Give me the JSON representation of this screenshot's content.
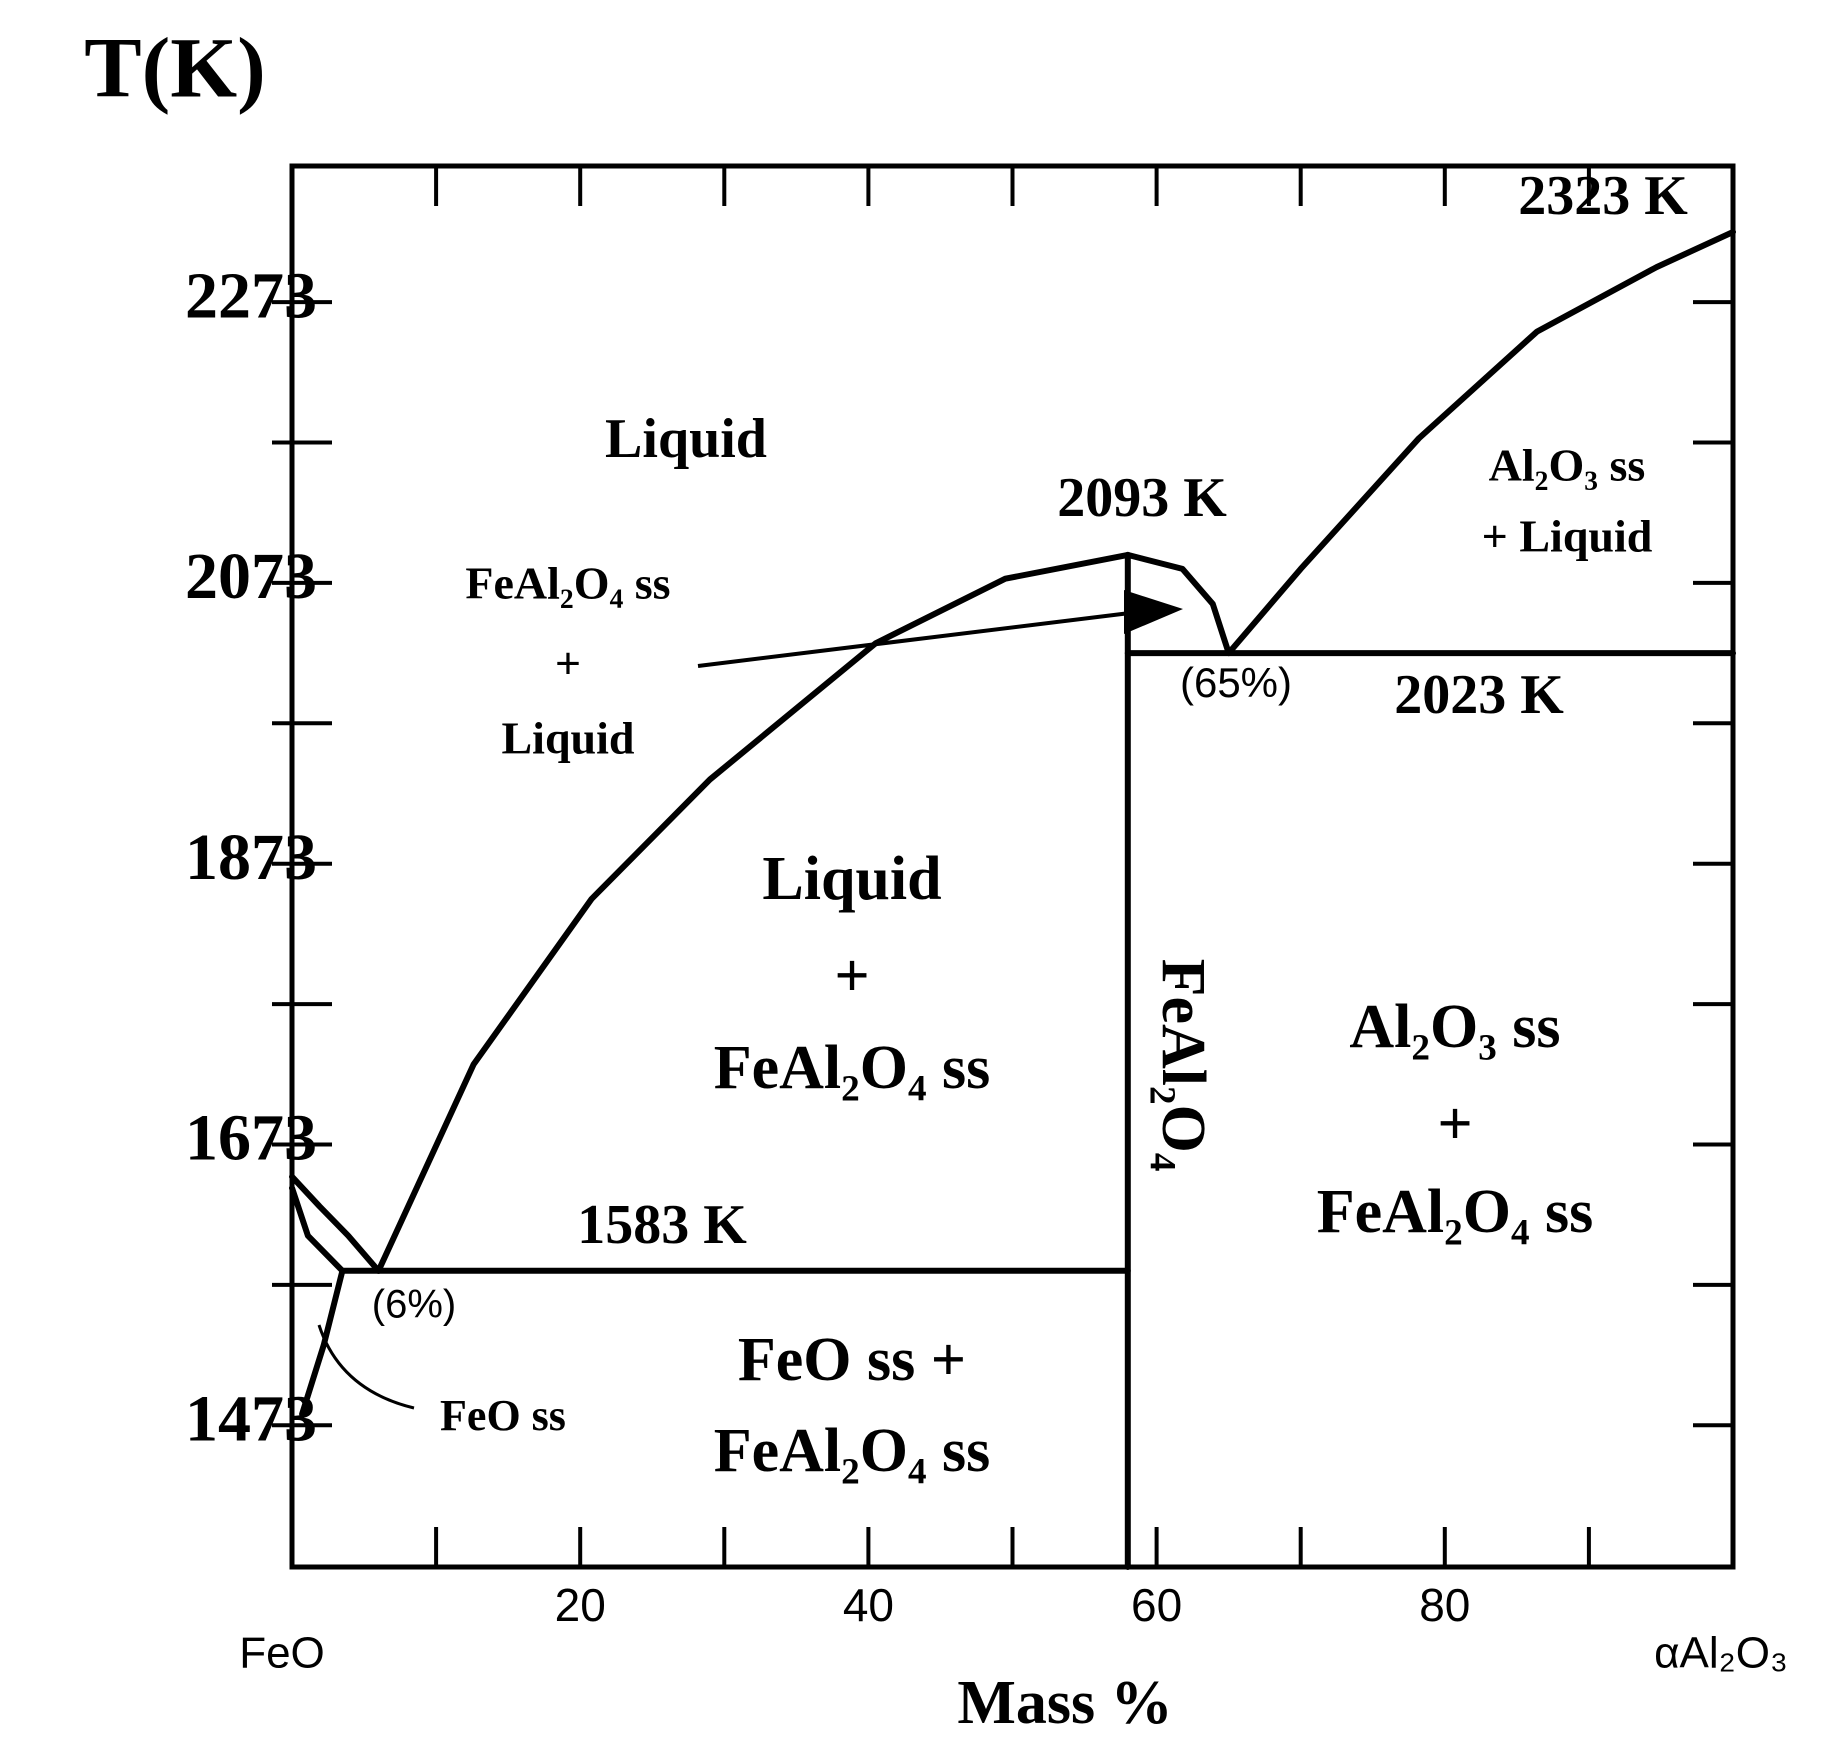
{
  "chart_data": {
    "type": "phase",
    "title": "T(K)",
    "x_label": "Mass %",
    "x_end_labels": [
      "FeO",
      "αAl₂O₃"
    ],
    "xlim": [
      0,
      100
    ],
    "ylim": [
      1372,
      2370
    ],
    "xticks": [
      20,
      40,
      60,
      80
    ],
    "xticks_minor": [
      10,
      30,
      50,
      70,
      90
    ],
    "yticks": [
      1473,
      1673,
      1873,
      2073,
      2273
    ],
    "yticks_minor": [
      1573,
      1773,
      1973,
      2173
    ],
    "color": "#000000",
    "series": [
      {
        "x": [
          6,
          12.6,
          20.8,
          29,
          40.5,
          49.5,
          58
        ],
        "values": [
          1583,
          1730,
          1848,
          1933,
          2030,
          2076,
          2093
        ]
      },
      {
        "x": [
          58,
          61.8,
          63.9,
          65
        ],
        "values": [
          2093,
          2083,
          2058,
          2023
        ]
      },
      {
        "x": [
          65,
          70,
          78.2,
          86.4,
          94.7,
          100
        ],
        "values": [
          2023,
          2083,
          2176,
          2252,
          2298,
          2323
        ]
      },
      {
        "x": [
          58,
          100
        ],
        "values": [
          2023,
          2023
        ]
      },
      {
        "x": [
          3.5,
          58
        ],
        "values": [
          1583,
          1583
        ]
      },
      {
        "x": [
          58,
          58
        ],
        "values": [
          1372,
          2093
        ]
      },
      {
        "x": [
          0,
          1.9,
          3.9,
          6
        ],
        "values": [
          1650,
          1629,
          1608,
          1583
        ]
      },
      {
        "x": [
          0,
          1.1,
          3.5
        ],
        "values": [
          1642,
          1608,
          1583
        ]
      },
      {
        "x": [
          3.5,
          2.2,
          0.7
        ],
        "values": [
          1583,
          1530,
          1481
        ]
      }
    ],
    "labels": {
      "liquid": "Liquid",
      "feal2o4_ss_liquid": [
        "FeAl₂O₄ ss",
        "+",
        "Liquid"
      ],
      "t_2093": "2093 K",
      "t_2323": "2323 K",
      "al2o3_ss_liquid": [
        "Al₂O₃ ss",
        "+ Liquid"
      ],
      "eutectic_65": "(65%)",
      "t_2023": "2023 K",
      "liquid_feal2o4_ss": [
        "Liquid",
        "+",
        "FeAl₂O₄ ss"
      ],
      "feal2o4": "FeAl₂O₄",
      "al2o3_ss_feal2o4_ss": [
        "Al₂O₃ ss",
        "+",
        "FeAl₂O₄ ss"
      ],
      "t_1583": "1583 K",
      "eutectic_6": "(6%)",
      "feo_ss_feal2o4_ss": [
        "FeO ss +",
        "FeAl₂O₄ ss"
      ],
      "feo_ss": "FeO ss"
    }
  }
}
